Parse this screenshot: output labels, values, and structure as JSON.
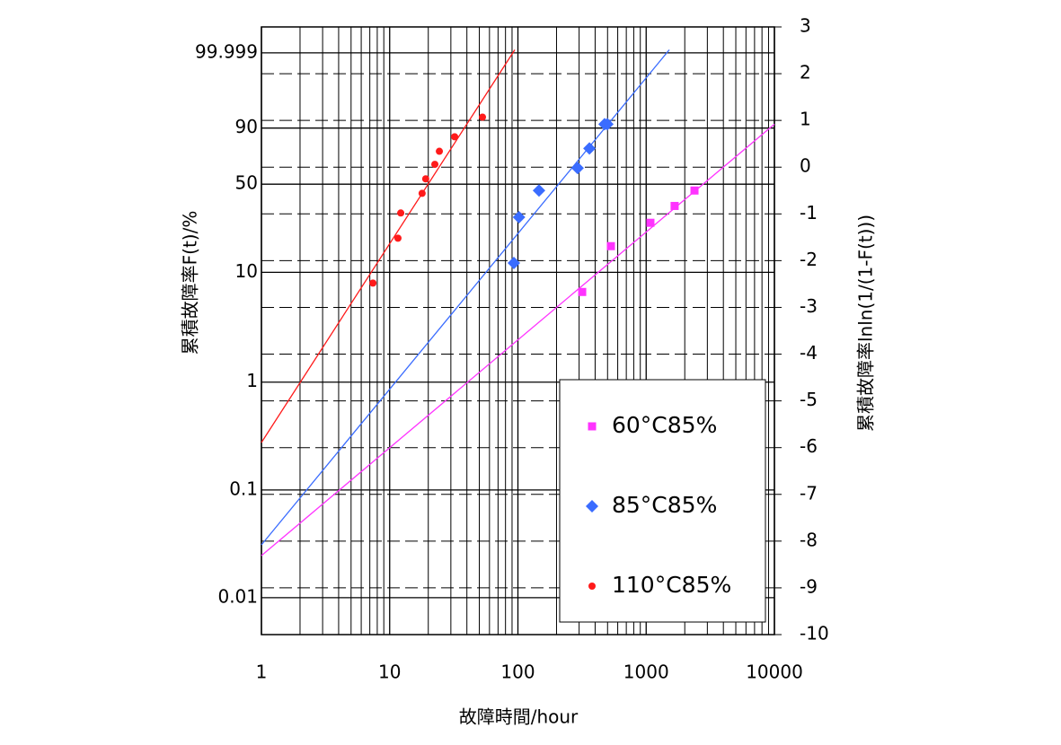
{
  "chart_data": {
    "type": "scatter",
    "xlabel": "故障時間/hour",
    "ylabel": "累積故障率F(t)/%",
    "y2label": "累積故障率lnln(1/(1-F(t)))",
    "xscale": "log",
    "yscale": "weibull",
    "xlim": [
      1,
      10000
    ],
    "xticks": [
      1,
      10,
      100,
      1000,
      10000
    ],
    "ylim": [
      0.00454,
      99.9999998
    ],
    "yticks": [
      0.01,
      0.1,
      1,
      10,
      50,
      90,
      99.999
    ],
    "y2lim": [
      -10,
      3
    ],
    "y2ticks": [
      3,
      2,
      1,
      0,
      -1,
      -2,
      -3,
      -4,
      -5,
      -6,
      -7,
      -8,
      -9,
      -10
    ],
    "grid": true,
    "minor_grid": true,
    "legend": "lower right",
    "series": [
      {
        "name": "60°C85%",
        "color": "#ff33ff",
        "marker": "square",
        "axis": "y2",
        "x": [
          317,
          531,
          1079,
          1667,
          2381
        ],
        "values": [
          -2.67,
          -1.69,
          -1.19,
          -0.83,
          -0.5
        ],
        "fit_x": [
          1,
          10000
        ],
        "fit_values": [
          -8.31,
          0.92
        ]
      },
      {
        "name": "85°C85%",
        "color": "#3a6cff",
        "marker": "diamond",
        "axis": "y2",
        "x": [
          93,
          102,
          146,
          292,
          361,
          474,
          498
        ],
        "values": [
          -2.05,
          -1.07,
          -0.5,
          -0.02,
          0.4,
          0.92,
          0.92
        ],
        "fit_x": [
          1,
          1514
        ],
        "fit_values": [
          -8.08,
          2.51
        ]
      },
      {
        "name": "110°C85%",
        "color": "#ff1a1a",
        "marker": "circle",
        "axis": "y2",
        "x": [
          7.4,
          11.6,
          12.2,
          17.9,
          19.1,
          22.5,
          24.4,
          32.1,
          52.9
        ],
        "values": [
          -2.48,
          -1.52,
          -0.98,
          -0.56,
          -0.25,
          0.06,
          0.34,
          0.65,
          1.07
        ],
        "fit_x": [
          1,
          94.5
        ],
        "fit_values": [
          -5.89,
          2.51
        ]
      }
    ]
  }
}
